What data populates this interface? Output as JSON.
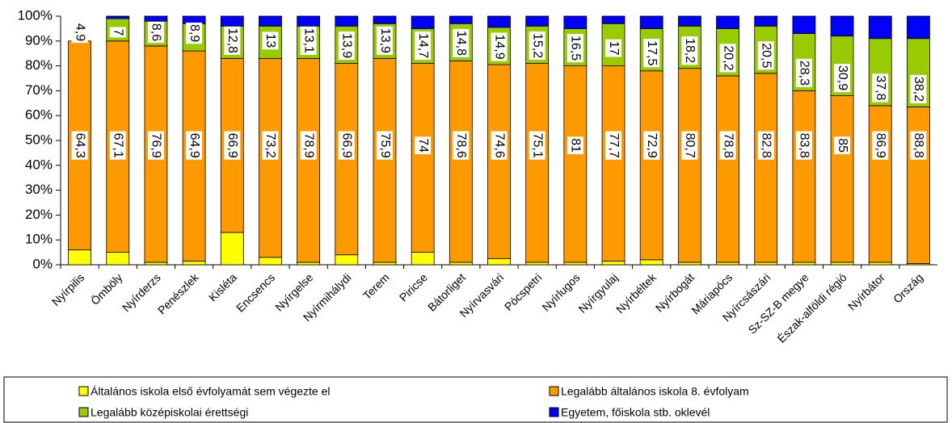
{
  "chart_data": {
    "type": "stacked_bar",
    "categories": [
      "Nyírpilis",
      "Ömböly",
      "Nyírderzs",
      "Penészlek",
      "Kisléta",
      "Encsencs",
      "Nyírgelse",
      "Nyírmihálydi",
      "Terem",
      "Piricse",
      "Bátorliget",
      "Nyírvasvári",
      "Pócspetri",
      "Nyírlugos",
      "Nyírgyulaj",
      "Nyírbéltek",
      "Nyírbogát",
      "Máriapócs",
      "Nyírcsászári",
      "Sz-SZ-B megye",
      "Észak-alföldi régió",
      "Nyírbátor",
      "Ország"
    ],
    "series": [
      {
        "name": "Általános iskola első évfolyamát sem végezte el",
        "color": "#ffff00",
        "values": [
          6,
          5,
          1,
          1.5,
          13,
          3,
          1,
          4,
          1,
          5,
          1,
          2.5,
          1,
          1,
          1.5,
          2,
          1,
          1,
          1,
          1,
          1,
          1,
          0.5
        ]
      },
      {
        "name": "Legalább általános iskola 8. évfolyam",
        "color": "#ff9900",
        "values": [
          84,
          85,
          87,
          84.5,
          70,
          80,
          82,
          77,
          82,
          76,
          81,
          78,
          80,
          79,
          78.5,
          76,
          78,
          75,
          76,
          69,
          67,
          63,
          63
        ]
      },
      {
        "name": "Legalább középiskolai érettségi",
        "color": "#99cc00",
        "values": [
          0,
          9,
          10,
          11,
          13,
          13,
          13,
          15,
          14,
          14,
          15,
          15,
          15,
          15,
          17,
          17,
          17,
          19,
          19,
          23,
          24,
          27,
          27.5
        ]
      },
      {
        "name": "Egyetem, főiskola stb. oklevél",
        "color": "#0000ff",
        "values": [
          0,
          1,
          2,
          3,
          4,
          4,
          4,
          4,
          3,
          5,
          3,
          4.5,
          4,
          5,
          3,
          5,
          4,
          5,
          4,
          7,
          8,
          9,
          9
        ]
      }
    ],
    "lower_labels": [
      "64,3",
      "67,1",
      "76,9",
      "64,9",
      "66,9",
      "73,2",
      "78,9",
      "66,9",
      "75,9",
      "74",
      "78,6",
      "74,6",
      "75,1",
      "81",
      "77,7",
      "72,9",
      "80,7",
      "78,8",
      "82,8",
      "83,8",
      "85",
      "86,9",
      "88,8"
    ],
    "upper_labels": [
      "4,9",
      "7",
      "8,6",
      "8,9",
      "12,8",
      "13",
      "13,1",
      "13,9",
      "13,9",
      "14,7",
      "14,8",
      "14,9",
      "15,2",
      "16,5",
      "17",
      "17,5",
      "18,2",
      "20,2",
      "20,5",
      "28,3",
      "30,9",
      "37,8",
      "38,2"
    ],
    "ylim": [
      0,
      100
    ],
    "yticks": [
      {
        "value": 0,
        "label": "0%"
      },
      {
        "value": 10,
        "label": "10%"
      },
      {
        "value": 20,
        "label": "20%"
      },
      {
        "value": 30,
        "label": "30%"
      },
      {
        "value": 40,
        "label": "40%"
      },
      {
        "value": 50,
        "label": "50%"
      },
      {
        "value": 60,
        "label": "60%"
      },
      {
        "value": 70,
        "label": "70%"
      },
      {
        "value": 80,
        "label": "80%"
      },
      {
        "value": 90,
        "label": "90%"
      },
      {
        "value": 100,
        "label": "100%"
      }
    ],
    "legend": "bottom"
  }
}
